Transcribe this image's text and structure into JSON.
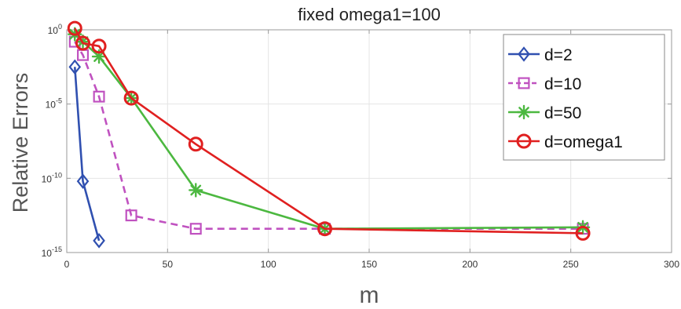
{
  "chart_data": {
    "type": "line",
    "title": "fixed omega1=100",
    "xlabel": "m",
    "ylabel": "Relative Errors",
    "xlim": [
      0,
      300
    ],
    "ylim_log10": [
      -15,
      0
    ],
    "yscale": "log",
    "grid": true,
    "legend_position": "top-right",
    "x_ticks": [
      0,
      50,
      100,
      150,
      200,
      250,
      300
    ],
    "x_tick_labels": [
      "0",
      "50",
      "100",
      "150",
      "200",
      "250",
      "300"
    ],
    "y_ticks_log10": [
      0,
      -5,
      -10,
      -15
    ],
    "y_tick_labels": [
      {
        "base": "10",
        "exp": "0"
      },
      {
        "base": "10",
        "exp": "-5"
      },
      {
        "base": "10",
        "exp": "-10"
      },
      {
        "base": "10",
        "exp": "-15"
      }
    ],
    "series": [
      {
        "name": "d=2",
        "color": "#3050b0",
        "marker": "diamond",
        "dashed": false,
        "x": [
          4,
          8,
          16
        ],
        "y_log10": [
          -2.5,
          -10.2,
          -14.2
        ]
      },
      {
        "name": "d=10",
        "color": "#c052c0",
        "marker": "square",
        "dashed": true,
        "x": [
          4,
          8,
          16,
          32,
          64,
          128,
          256
        ],
        "y_log10": [
          -0.8,
          -1.7,
          -4.5,
          -12.5,
          -13.4,
          -13.4,
          -13.4
        ]
      },
      {
        "name": "d=50",
        "color": "#4cb840",
        "marker": "star",
        "dashed": false,
        "x": [
          4,
          8,
          16,
          32,
          64,
          128,
          256
        ],
        "y_log10": [
          -0.3,
          -0.8,
          -1.8,
          -4.6,
          -10.8,
          -13.4,
          -13.3
        ]
      },
      {
        "name": "d=omega1",
        "color": "#e02020",
        "marker": "circle",
        "dashed": false,
        "x": [
          4,
          8,
          16,
          32,
          64,
          128,
          256
        ],
        "y_log10": [
          0.1,
          -0.9,
          -1.1,
          -4.6,
          -7.7,
          -13.4,
          -13.7
        ]
      }
    ]
  }
}
